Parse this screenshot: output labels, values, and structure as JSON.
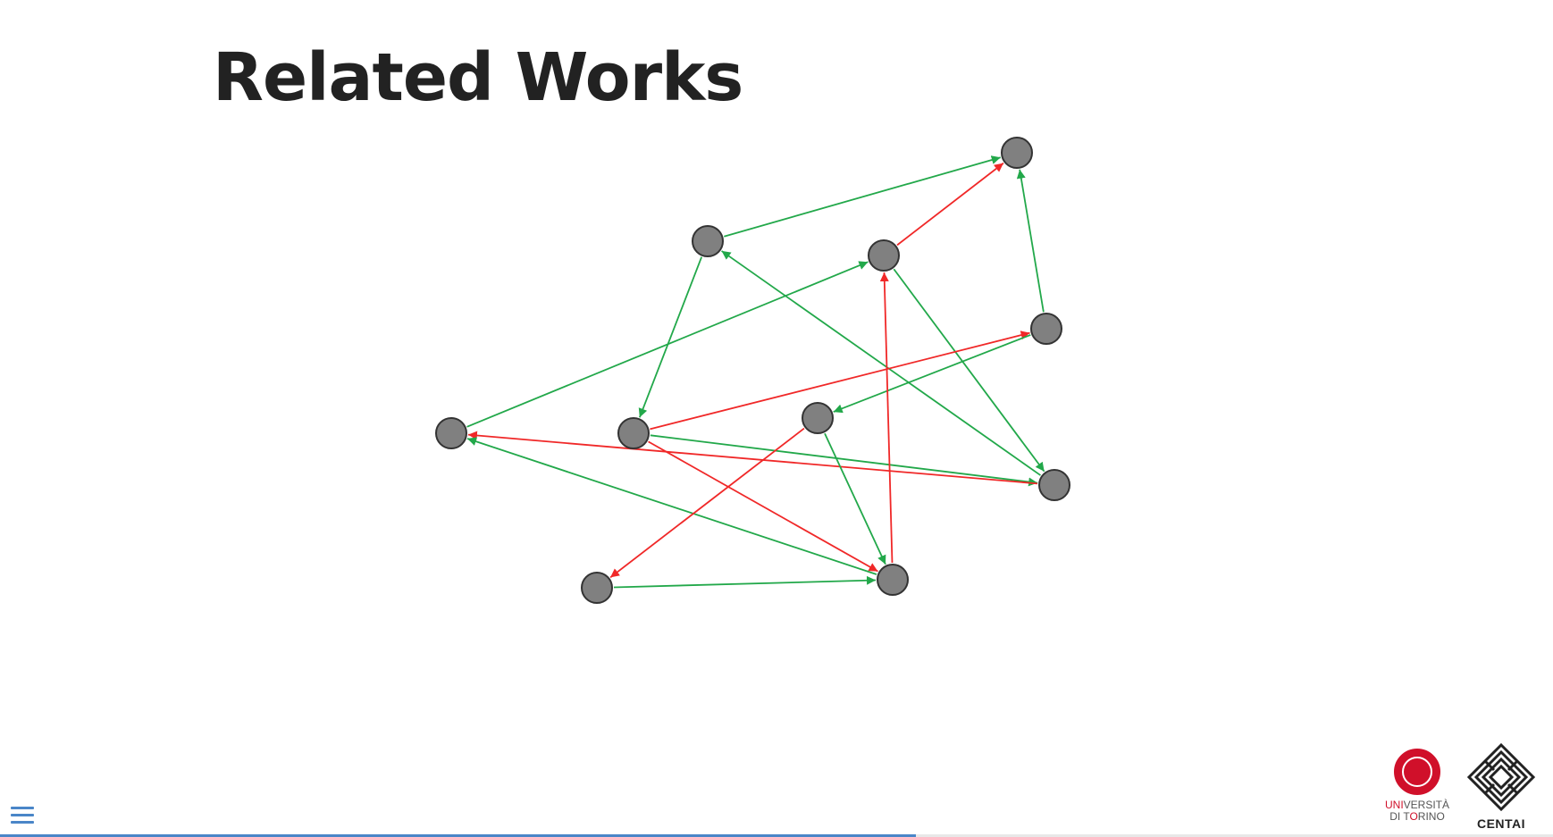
{
  "slide": {
    "title": "Related Works"
  },
  "graph": {
    "node_color": "#808080",
    "positive_edge_color": "#22a84a",
    "negative_edge_color": "#f02828",
    "edge_count": 18
  },
  "logos": {
    "unito_line1_prefix": "UNI",
    "unito_line1_suffix": "VERSITÀ",
    "unito_line2_prefix": "DI T",
    "unito_line2_red": "O",
    "unito_line2_suffix": "RINO",
    "centai": "CENTAI"
  },
  "navigation": {
    "progress": 0.59
  }
}
